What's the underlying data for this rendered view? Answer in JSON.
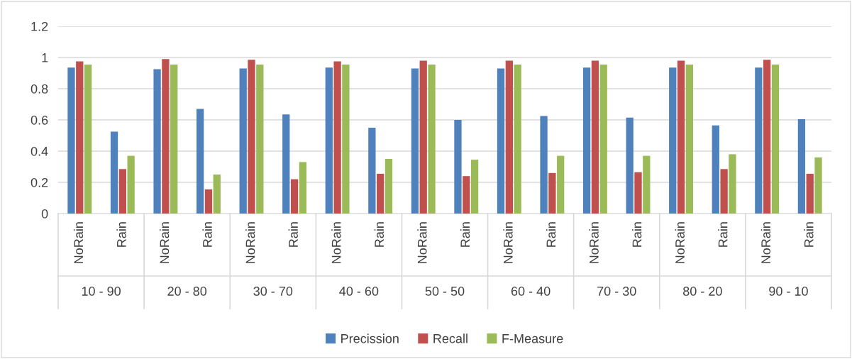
{
  "chart_data": {
    "type": "bar",
    "categories": [
      "NoRain",
      "Rain",
      "NoRain",
      "Rain",
      "NoRain",
      "Rain",
      "NoRain",
      "Rain",
      "NoRain",
      "Rain",
      "NoRain",
      "Rain",
      "NoRain",
      "Rain",
      "NoRain",
      "Rain",
      "NoRain",
      "Rain"
    ],
    "annotations": [
      "10 - 90",
      "20 - 80",
      "30 - 70",
      "40 - 60",
      "50 - 50",
      "60 - 40",
      "70 - 30",
      "80 - 20",
      "90 - 10"
    ],
    "series": [
      {
        "name": "Precission",
        "color": "#4f81bd",
        "values": [
          0.935,
          0.525,
          0.925,
          0.67,
          0.93,
          0.635,
          0.935,
          0.55,
          0.93,
          0.6,
          0.93,
          0.625,
          0.935,
          0.615,
          0.935,
          0.565,
          0.935,
          0.605
        ]
      },
      {
        "name": "Recall",
        "color": "#c0504d",
        "values": [
          0.975,
          0.285,
          0.99,
          0.155,
          0.985,
          0.22,
          0.975,
          0.255,
          0.98,
          0.24,
          0.98,
          0.26,
          0.98,
          0.265,
          0.98,
          0.285,
          0.985,
          0.255
        ]
      },
      {
        "name": "F-Measure",
        "color": "#9bbb59",
        "values": [
          0.955,
          0.37,
          0.955,
          0.25,
          0.955,
          0.33,
          0.955,
          0.35,
          0.955,
          0.345,
          0.955,
          0.37,
          0.955,
          0.37,
          0.955,
          0.38,
          0.955,
          0.36
        ]
      }
    ],
    "ylim": [
      0,
      1.2
    ],
    "yticks": [
      0,
      {
        "value": 0.2,
        "label": "0.2"
      },
      {
        "value": 0.4,
        "label": "0.4"
      },
      {
        "value": 0.6,
        "label": "0.6"
      },
      {
        "value": 0.8,
        "label": "0.8"
      },
      1,
      {
        "value": 1.2,
        "label": "1.2"
      }
    ],
    "grid": "y",
    "legend": "bottom"
  }
}
